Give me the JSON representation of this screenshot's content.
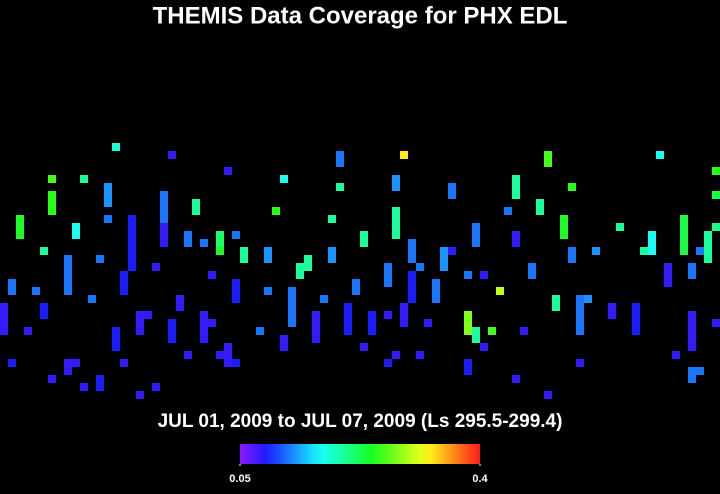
{
  "chart_data": {
    "type": "heatmap",
    "title": "THEMIS Data Coverage for PHX EDL",
    "subtitle": "JUL 01, 2009 to JUL 07, 2009 (Ls 295.5-299.4)",
    "clim": [
      0.05,
      0.4
    ],
    "cticks": [
      0.05,
      0.4
    ],
    "cells": [
      [
        14,
        0,
        0.18
      ],
      [
        21,
        1,
        0.08
      ],
      [
        42,
        1,
        0.12
      ],
      [
        42,
        2,
        0.12
      ],
      [
        50,
        1,
        0.33
      ],
      [
        68,
        1,
        0.26
      ],
      [
        68,
        2,
        0.26
      ],
      [
        82,
        1,
        0.17
      ],
      [
        28,
        3,
        0.08
      ],
      [
        6,
        4,
        0.26
      ],
      [
        6,
        6,
        0.25
      ],
      [
        6,
        7,
        0.25
      ],
      [
        6,
        8,
        0.25
      ],
      [
        10,
        4,
        0.2
      ],
      [
        13,
        5,
        0.13
      ],
      [
        13,
        6,
        0.13
      ],
      [
        13,
        7,
        0.13
      ],
      [
        20,
        6,
        0.12
      ],
      [
        20,
        7,
        0.12
      ],
      [
        20,
        8,
        0.12
      ],
      [
        20,
        9,
        0.12
      ],
      [
        24,
        7,
        0.2
      ],
      [
        24,
        8,
        0.2
      ],
      [
        35,
        4,
        0.17
      ],
      [
        42,
        5,
        0.2
      ],
      [
        49,
        4,
        0.13
      ],
      [
        49,
        5,
        0.13
      ],
      [
        56,
        5,
        0.12
      ],
      [
        56,
        6,
        0.12
      ],
      [
        64,
        4,
        0.2
      ],
      [
        64,
        5,
        0.2
      ],
      [
        64,
        6,
        0.2
      ],
      [
        71,
        5,
        0.25
      ],
      [
        89,
        3,
        0.25
      ],
      [
        89,
        6,
        0.23
      ],
      [
        2,
        9,
        0.24
      ],
      [
        2,
        10,
        0.24
      ],
      [
        2,
        11,
        0.24
      ],
      [
        9,
        10,
        0.17
      ],
      [
        9,
        11,
        0.17
      ],
      [
        13,
        9,
        0.12
      ],
      [
        16,
        9,
        0.09
      ],
      [
        16,
        10,
        0.09
      ],
      [
        16,
        11,
        0.09
      ],
      [
        16,
        12,
        0.09
      ],
      [
        16,
        13,
        0.09
      ],
      [
        16,
        14,
        0.09
      ],
      [
        16,
        15,
        0.09
      ],
      [
        20,
        10,
        0.08
      ],
      [
        20,
        11,
        0.08
      ],
      [
        20,
        12,
        0.08
      ],
      [
        23,
        11,
        0.12
      ],
      [
        23,
        12,
        0.12
      ],
      [
        25,
        12,
        0.12
      ],
      [
        27,
        11,
        0.22
      ],
      [
        27,
        12,
        0.22
      ],
      [
        27,
        13,
        0.24
      ],
      [
        29,
        11,
        0.12
      ],
      [
        30,
        13,
        0.2
      ],
      [
        30,
        14,
        0.2
      ],
      [
        34,
        8,
        0.25
      ],
      [
        33,
        13,
        0.13
      ],
      [
        33,
        14,
        0.13
      ],
      [
        37,
        15,
        0.2
      ],
      [
        37,
        16,
        0.2
      ],
      [
        38,
        14,
        0.2
      ],
      [
        38,
        15,
        0.2
      ],
      [
        41,
        9,
        0.2
      ],
      [
        41,
        13,
        0.13
      ],
      [
        41,
        14,
        0.13
      ],
      [
        45,
        11,
        0.2
      ],
      [
        45,
        12,
        0.2
      ],
      [
        49,
        8,
        0.2
      ],
      [
        49,
        9,
        0.2
      ],
      [
        49,
        10,
        0.2
      ],
      [
        49,
        11,
        0.2
      ],
      [
        51,
        12,
        0.12
      ],
      [
        51,
        13,
        0.12
      ],
      [
        51,
        14,
        0.12
      ],
      [
        55,
        13,
        0.13
      ],
      [
        55,
        14,
        0.13
      ],
      [
        55,
        15,
        0.13
      ],
      [
        56,
        13,
        0.08
      ],
      [
        59,
        10,
        0.12
      ],
      [
        59,
        11,
        0.12
      ],
      [
        59,
        12,
        0.12
      ],
      [
        64,
        11,
        0.08
      ],
      [
        64,
        12,
        0.08
      ],
      [
        63,
        8,
        0.12
      ],
      [
        67,
        7,
        0.2
      ],
      [
        67,
        8,
        0.2
      ],
      [
        70,
        9,
        0.24
      ],
      [
        70,
        10,
        0.24
      ],
      [
        70,
        11,
        0.24
      ],
      [
        71,
        13,
        0.12
      ],
      [
        71,
        14,
        0.12
      ],
      [
        74,
        13,
        0.13
      ],
      [
        77,
        10,
        0.2
      ],
      [
        80,
        13,
        0.2
      ],
      [
        81,
        11,
        0.17
      ],
      [
        81,
        12,
        0.17
      ],
      [
        81,
        13,
        0.17
      ],
      [
        85,
        9,
        0.23
      ],
      [
        85,
        10,
        0.23
      ],
      [
        85,
        11,
        0.23
      ],
      [
        85,
        12,
        0.23
      ],
      [
        85,
        13,
        0.23
      ],
      [
        88,
        11,
        0.2
      ],
      [
        88,
        12,
        0.2
      ],
      [
        88,
        13,
        0.2
      ],
      [
        88,
        14,
        0.2
      ],
      [
        89,
        10,
        0.21
      ],
      [
        5,
        13,
        0.2
      ],
      [
        8,
        14,
        0.12
      ],
      [
        8,
        15,
        0.12
      ],
      [
        8,
        16,
        0.12
      ],
      [
        8,
        17,
        0.12
      ],
      [
        8,
        18,
        0.12
      ],
      [
        12,
        14,
        0.12
      ],
      [
        15,
        16,
        0.09
      ],
      [
        15,
        17,
        0.09
      ],
      [
        15,
        18,
        0.09
      ],
      [
        19,
        15,
        0.08
      ],
      [
        26,
        16,
        0.08
      ],
      [
        29,
        17,
        0.09
      ],
      [
        29,
        18,
        0.09
      ],
      [
        29,
        19,
        0.09
      ],
      [
        33,
        18,
        0.12
      ],
      [
        36,
        18,
        0.12
      ],
      [
        36,
        19,
        0.12
      ],
      [
        36,
        20,
        0.12
      ],
      [
        36,
        21,
        0.12
      ],
      [
        36,
        22,
        0.12
      ],
      [
        40,
        19,
        0.12
      ],
      [
        44,
        17,
        0.12
      ],
      [
        44,
        18,
        0.12
      ],
      [
        48,
        15,
        0.12
      ],
      [
        48,
        16,
        0.12
      ],
      [
        48,
        17,
        0.12
      ],
      [
        51,
        16,
        0.09
      ],
      [
        51,
        17,
        0.09
      ],
      [
        51,
        18,
        0.09
      ],
      [
        51,
        19,
        0.09
      ],
      [
        52,
        15,
        0.12
      ],
      [
        54,
        17,
        0.12
      ],
      [
        54,
        18,
        0.12
      ],
      [
        54,
        19,
        0.12
      ],
      [
        58,
        16,
        0.12
      ],
      [
        60,
        16,
        0.08
      ],
      [
        62,
        18,
        0.3
      ],
      [
        66,
        15,
        0.12
      ],
      [
        66,
        16,
        0.12
      ],
      [
        69,
        19,
        0.2
      ],
      [
        69,
        20,
        0.2
      ],
      [
        72,
        19,
        0.12
      ],
      [
        72,
        20,
        0.12
      ],
      [
        72,
        21,
        0.12
      ],
      [
        72,
        22,
        0.12
      ],
      [
        72,
        23,
        0.12
      ],
      [
        73,
        19,
        0.13
      ],
      [
        76,
        20,
        0.08
      ],
      [
        76,
        21,
        0.08
      ],
      [
        79,
        20,
        0.09
      ],
      [
        79,
        21,
        0.09
      ],
      [
        79,
        22,
        0.09
      ],
      [
        79,
        23,
        0.09
      ],
      [
        83,
        15,
        0.08
      ],
      [
        83,
        16,
        0.08
      ],
      [
        83,
        17,
        0.08
      ],
      [
        86,
        15,
        0.12
      ],
      [
        86,
        16,
        0.12
      ],
      [
        87,
        13,
        0.12
      ],
      [
        1,
        17,
        0.12
      ],
      [
        1,
        18,
        0.12
      ],
      [
        4,
        18,
        0.12
      ],
      [
        0,
        20,
        0.08
      ],
      [
        0,
        21,
        0.08
      ],
      [
        0,
        22,
        0.08
      ],
      [
        0,
        23,
        0.08
      ],
      [
        3,
        23,
        0.08
      ],
      [
        5,
        20,
        0.09
      ],
      [
        5,
        21,
        0.09
      ],
      [
        11,
        19,
        0.12
      ],
      [
        14,
        23,
        0.09
      ],
      [
        14,
        24,
        0.09
      ],
      [
        14,
        25,
        0.09
      ],
      [
        17,
        21,
        0.08
      ],
      [
        17,
        22,
        0.08
      ],
      [
        17,
        23,
        0.08
      ],
      [
        18,
        21,
        0.08
      ],
      [
        21,
        22,
        0.09
      ],
      [
        21,
        23,
        0.09
      ],
      [
        21,
        24,
        0.09
      ],
      [
        22,
        19,
        0.08
      ],
      [
        22,
        20,
        0.08
      ],
      [
        25,
        21,
        0.08
      ],
      [
        25,
        22,
        0.08
      ],
      [
        25,
        23,
        0.08
      ],
      [
        25,
        24,
        0.08
      ],
      [
        26,
        22,
        0.08
      ],
      [
        32,
        23,
        0.12
      ],
      [
        35,
        24,
        0.08
      ],
      [
        35,
        25,
        0.08
      ],
      [
        39,
        21,
        0.08
      ],
      [
        39,
        22,
        0.08
      ],
      [
        39,
        23,
        0.08
      ],
      [
        39,
        24,
        0.08
      ],
      [
        43,
        20,
        0.09
      ],
      [
        43,
        21,
        0.09
      ],
      [
        43,
        22,
        0.09
      ],
      [
        43,
        23,
        0.09
      ],
      [
        46,
        21,
        0.09
      ],
      [
        46,
        22,
        0.09
      ],
      [
        46,
        23,
        0.09
      ],
      [
        48,
        21,
        0.08
      ],
      [
        50,
        20,
        0.08
      ],
      [
        50,
        21,
        0.08
      ],
      [
        50,
        22,
        0.08
      ],
      [
        53,
        22,
        0.08
      ],
      [
        58,
        21,
        0.28
      ],
      [
        58,
        22,
        0.28
      ],
      [
        58,
        23,
        0.28
      ],
      [
        59,
        23,
        0.2
      ],
      [
        59,
        24,
        0.2
      ],
      [
        61,
        23,
        0.26
      ],
      [
        60,
        25,
        0.08
      ],
      [
        65,
        23,
        0.08
      ],
      [
        86,
        21,
        0.08
      ],
      [
        86,
        22,
        0.08
      ],
      [
        86,
        23,
        0.08
      ],
      [
        86,
        24,
        0.08
      ],
      [
        86,
        25,
        0.08
      ],
      [
        89,
        22,
        0.08
      ],
      [
        1,
        27,
        0.09
      ],
      [
        6,
        29,
        0.08
      ],
      [
        8,
        27,
        0.08
      ],
      [
        8,
        28,
        0.08
      ],
      [
        9,
        27,
        0.08
      ],
      [
        10,
        30,
        0.08
      ],
      [
        12,
        29,
        0.09
      ],
      [
        12,
        30,
        0.09
      ],
      [
        15,
        27,
        0.08
      ],
      [
        19,
        30,
        0.08
      ],
      [
        17,
        31,
        0.08
      ],
      [
        23,
        26,
        0.08
      ],
      [
        27,
        26,
        0.08
      ],
      [
        28,
        25,
        0.08
      ],
      [
        28,
        26,
        0.08
      ],
      [
        28,
        27,
        0.08
      ],
      [
        29,
        27,
        0.09
      ],
      [
        45,
        25,
        0.08
      ],
      [
        48,
        27,
        0.09
      ],
      [
        49,
        26,
        0.08
      ],
      [
        52,
        26,
        0.08
      ],
      [
        58,
        27,
        0.09
      ],
      [
        58,
        28,
        0.09
      ],
      [
        64,
        29,
        0.08
      ],
      [
        68,
        31,
        0.08
      ],
      [
        72,
        27,
        0.08
      ],
      [
        84,
        26,
        0.08
      ],
      [
        86,
        28,
        0.12
      ],
      [
        86,
        29,
        0.12
      ],
      [
        87,
        28,
        0.12
      ]
    ]
  }
}
